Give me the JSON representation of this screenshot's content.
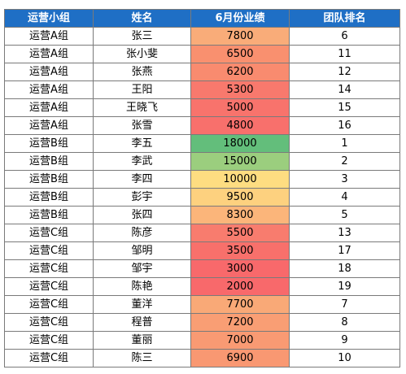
{
  "header": {
    "group": "运营小组",
    "name": "姓名",
    "performance": "6月份业绩",
    "rank": "团队排名"
  },
  "rows": [
    {
      "group": "运营A组",
      "name": "张三",
      "performance": "7800",
      "rank": "6",
      "color": "#f9ac79"
    },
    {
      "group": "运营A组",
      "name": "张小斐",
      "performance": "6500",
      "rank": "11",
      "color": "#f9906f"
    },
    {
      "group": "运营A组",
      "name": "张燕",
      "performance": "6200",
      "rank": "12",
      "color": "#f98b6f"
    },
    {
      "group": "运营A组",
      "name": "王阳",
      "performance": "5300",
      "rank": "14",
      "color": "#f8796d"
    },
    {
      "group": "运营A组",
      "name": "王晓飞",
      "performance": "5000",
      "rank": "15",
      "color": "#f8736c"
    },
    {
      "group": "运营A组",
      "name": "张雪",
      "performance": "4800",
      "rank": "16",
      "color": "#f8706c"
    },
    {
      "group": "运营B组",
      "name": "李五",
      "performance": "18000",
      "rank": "1",
      "color": "#63be7b"
    },
    {
      "group": "运营B组",
      "name": "李武",
      "performance": "15000",
      "rank": "2",
      "color": "#9bce7e"
    },
    {
      "group": "运营B组",
      "name": "李四",
      "performance": "10000",
      "rank": "3",
      "color": "#fedd81"
    },
    {
      "group": "运营B组",
      "name": "彭宇",
      "performance": "9500",
      "rank": "4",
      "color": "#fdd17f"
    },
    {
      "group": "运营B组",
      "name": "张四",
      "performance": "8300",
      "rank": "5",
      "color": "#fbb57a"
    },
    {
      "group": "运营C组",
      "name": "陈彦",
      "performance": "5500",
      "rank": "13",
      "color": "#f87c6e"
    },
    {
      "group": "运营C组",
      "name": "邹明",
      "performance": "3500",
      "rank": "17",
      "color": "#f8706b"
    },
    {
      "group": "运营C组",
      "name": "邹宇",
      "performance": "3000",
      "rank": "18",
      "color": "#f8696b"
    },
    {
      "group": "运营C组",
      "name": "陈艳",
      "performance": "2000",
      "rank": "19",
      "color": "#f8696b"
    },
    {
      "group": "运营C组",
      "name": "董洋",
      "performance": "7700",
      "rank": "7",
      "color": "#f9a977"
    },
    {
      "group": "运营C组",
      "name": "程普",
      "performance": "7200",
      "rank": "8",
      "color": "#f99e74"
    },
    {
      "group": "运营C组",
      "name": "董丽",
      "performance": "7000",
      "rank": "9",
      "color": "#f99a73"
    },
    {
      "group": "运营C组",
      "name": "陈三",
      "performance": "6900",
      "rank": "10",
      "color": "#f99872"
    }
  ]
}
